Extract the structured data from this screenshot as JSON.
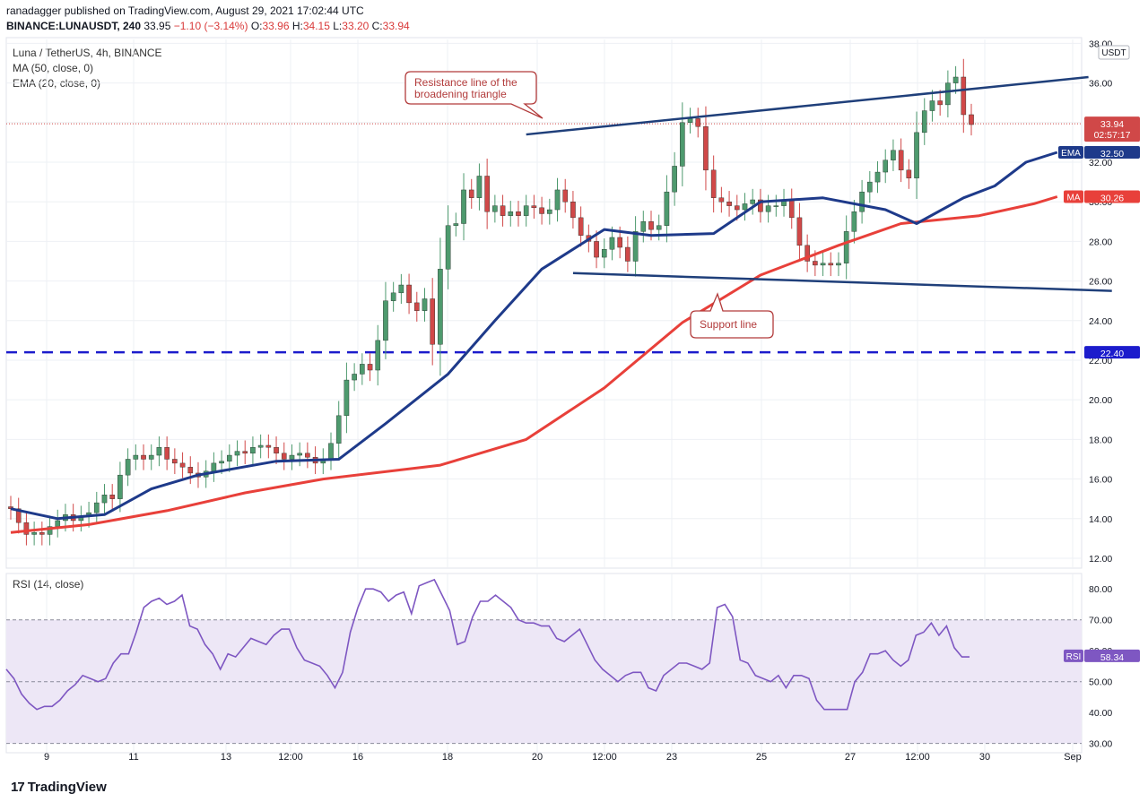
{
  "header": {
    "published": "ranadagger published on TradingView.com, August 29, 2021 17:02:44 UTC",
    "symbol_bold": "BINANCE:LUNAUSDT, 240",
    "price": "33.95",
    "change": "−1.10 (−3.14%)",
    "o_label": "O:",
    "o": "33.96",
    "h_label": "H:",
    "h": "34.15",
    "l_label": "L:",
    "l": "33.20",
    "c_label": "C:",
    "c": "33.94"
  },
  "legend": {
    "title": "Luna / TetherUS, 4h, BINANCE",
    "ma": "MA (50, close, 0)",
    "ema": "EMA (20, close, 0)",
    "rsi": "RSI (14, close)"
  },
  "annotations": {
    "resistance": [
      "Resistance line of the",
      "broadening triangle"
    ],
    "support": "Support line"
  },
  "badges": {
    "usdt": "USDT",
    "price": "33.94",
    "countdown": "02:57:17",
    "ema_tag": "EMA",
    "ema_val": "32.50",
    "ma_tag": "MA",
    "ma_val": "30.26",
    "level": "22.40",
    "rsi_tag": "RSI",
    "rsi_val": "58.34"
  },
  "brand": "TradingView",
  "colors": {
    "up": "#4e9a6e",
    "down": "#d04848",
    "ema": "#1e3a8a",
    "ma": "#e8403a",
    "trend": "#1f3f7a",
    "dash": "#1c1ccc",
    "rsi": "#7e57c2",
    "rsi_band": "#ede7f6",
    "annotation": "#b23b3b"
  },
  "chart_data": [
    {
      "type": "candlestick",
      "title": "Luna / TetherUS, 4h, BINANCE",
      "ylim": [
        11.5,
        38.2
      ],
      "y_ticks": [
        12,
        14,
        16,
        18,
        20,
        22,
        24,
        26,
        28,
        30,
        32,
        34,
        36,
        38
      ],
      "y_tick_labels": [
        "12.00",
        "14.00",
        "16.00",
        "18.00",
        "20.00",
        "22.00",
        "24.00",
        "26.00",
        "28.00",
        "30.00",
        "32.00",
        "34.00",
        "36.00",
        "38.00"
      ],
      "x_ticks": [
        "9",
        "11",
        "13",
        "12:00",
        "16",
        "18",
        "20",
        "12:00",
        "23",
        "25",
        "27",
        "12:00",
        "30",
        "Sep"
      ],
      "grid": true,
      "horizontal_level": 22.4,
      "last_price": 33.94,
      "closes": [
        14.5,
        13.8,
        13.2,
        13.3,
        13.2,
        13.6,
        13.9,
        14.2,
        13.9,
        14.1,
        14.3,
        14.8,
        15.2,
        15.0,
        16.2,
        17.0,
        17.2,
        17.0,
        17.2,
        17.6,
        17.0,
        16.8,
        16.6,
        16.3,
        16.1,
        16.4,
        16.8,
        16.9,
        17.2,
        17.4,
        17.3,
        17.6,
        17.7,
        17.6,
        17.3,
        17.0,
        17.2,
        17.3,
        17.1,
        16.8,
        17.0,
        17.8,
        19.2,
        21.0,
        21.3,
        21.8,
        21.5,
        23.0,
        25.0,
        25.4,
        25.8,
        24.9,
        24.5,
        25.1,
        22.8,
        26.6,
        28.8,
        28.9,
        30.6,
        30.2,
        31.3,
        29.5,
        29.8,
        29.3,
        29.5,
        29.3,
        29.8,
        29.7,
        29.4,
        29.6,
        30.6,
        30.0,
        29.2,
        28.3,
        28.0,
        27.2,
        27.6,
        28.2,
        27.7,
        27.0,
        28.5,
        29.0,
        28.6,
        28.8,
        30.5,
        31.8,
        34.0,
        34.2,
        33.8,
        31.6,
        30.2,
        30.0,
        29.8,
        29.6,
        29.9,
        30.1,
        29.5,
        29.8,
        29.8,
        30.1,
        29.2,
        27.8,
        27.0,
        26.8,
        26.9,
        26.8,
        26.9,
        28.5,
        29.5,
        30.5,
        31.0,
        31.5,
        32.1,
        32.6,
        31.6,
        31.2,
        33.5,
        34.6,
        35.1,
        34.9,
        36.0,
        36.3,
        34.4,
        33.9
      ],
      "opens": [
        14.6,
        14.5,
        13.8,
        13.2,
        13.3,
        13.2,
        13.6,
        13.9,
        14.2,
        13.9,
        14.1,
        14.3,
        14.8,
        15.2,
        15.0,
        16.2,
        17.0,
        17.2,
        17.0,
        17.2,
        17.6,
        17.0,
        16.8,
        16.6,
        16.3,
        16.1,
        16.4,
        16.8,
        16.9,
        17.2,
        17.4,
        17.3,
        17.6,
        17.7,
        17.6,
        17.3,
        17.0,
        17.2,
        17.3,
        17.1,
        16.8,
        17.0,
        17.8,
        19.2,
        21.0,
        21.3,
        21.8,
        21.5,
        23.0,
        25.0,
        25.4,
        25.8,
        24.9,
        24.5,
        25.1,
        22.8,
        26.6,
        28.8,
        28.9,
        30.6,
        30.2,
        31.3,
        29.5,
        29.8,
        29.3,
        29.5,
        29.3,
        29.8,
        29.7,
        29.4,
        29.6,
        30.6,
        30.0,
        29.2,
        28.3,
        28.0,
        27.2,
        27.6,
        28.2,
        27.7,
        27.0,
        28.5,
        29.0,
        28.6,
        28.8,
        30.5,
        31.8,
        34.0,
        34.2,
        33.8,
        31.6,
        30.2,
        30.0,
        29.8,
        29.6,
        29.9,
        30.1,
        29.5,
        29.8,
        29.8,
        30.1,
        29.2,
        27.8,
        27.0,
        26.8,
        26.9,
        26.8,
        26.9,
        28.5,
        29.5,
        30.5,
        31.0,
        31.5,
        32.1,
        32.6,
        31.6,
        31.2,
        33.5,
        34.6,
        35.1,
        34.9,
        36.0,
        36.3,
        34.4
      ],
      "ma50_path": [
        [
          0,
          13.3
        ],
        [
          10,
          13.7
        ],
        [
          20,
          14.4
        ],
        [
          30,
          15.3
        ],
        [
          40,
          16.0
        ],
        [
          55,
          16.7
        ],
        [
          66,
          18.0
        ],
        [
          76,
          20.6
        ],
        [
          86,
          23.9
        ],
        [
          96,
          26.3
        ],
        [
          106,
          27.8
        ],
        [
          114,
          28.9
        ],
        [
          124,
          29.3
        ],
        [
          131,
          29.9
        ],
        [
          134,
          30.26
        ]
      ],
      "ema20_path": [
        [
          0,
          14.5
        ],
        [
          6,
          14.0
        ],
        [
          12,
          14.2
        ],
        [
          18,
          15.5
        ],
        [
          24,
          16.2
        ],
        [
          34,
          16.9
        ],
        [
          42,
          17.0
        ],
        [
          48,
          18.8
        ],
        [
          56,
          21.3
        ],
        [
          62,
          24.0
        ],
        [
          68,
          26.6
        ],
        [
          76,
          28.6
        ],
        [
          82,
          28.3
        ],
        [
          90,
          28.4
        ],
        [
          96,
          30.0
        ],
        [
          104,
          30.2
        ],
        [
          112,
          29.6
        ],
        [
          116,
          28.9
        ],
        [
          122,
          30.2
        ],
        [
          126,
          30.8
        ],
        [
          130,
          32.0
        ],
        [
          134,
          32.5
        ]
      ],
      "resistance_line": [
        [
          66,
          33.4
        ],
        [
          138,
          36.3
        ]
      ],
      "support_line": [
        [
          72,
          26.4
        ],
        [
          141,
          25.5
        ]
      ]
    },
    {
      "type": "line",
      "title": "RSI (14, close)",
      "ylim": [
        27,
        85
      ],
      "y_ticks": [
        30,
        40,
        50,
        60,
        70,
        80
      ],
      "y_tick_labels": [
        "30.00",
        "40.00",
        "50.00",
        "60.00",
        "70.00",
        "80.00"
      ],
      "bands": [
        30,
        50,
        70
      ],
      "last_value": 58.34,
      "values": [
        54,
        51,
        46,
        43,
        41,
        42,
        42,
        44,
        47,
        49,
        52,
        51,
        50,
        51,
        56,
        59,
        59,
        66,
        74,
        76,
        77,
        75,
        76,
        78,
        68,
        67,
        62,
        59,
        54,
        59,
        58,
        61,
        64,
        63,
        62,
        65,
        67,
        67,
        61,
        57,
        56,
        55,
        52,
        48,
        53,
        66,
        74,
        80,
        80,
        79,
        76,
        78,
        79,
        72,
        81,
        82,
        83,
        78,
        73,
        62,
        63,
        71,
        76,
        76,
        78,
        76,
        74,
        70,
        69,
        69,
        68,
        68,
        64,
        63,
        65,
        67,
        62,
        57,
        54,
        52,
        50,
        52,
        53,
        53,
        48,
        47,
        52,
        54,
        56,
        56,
        55,
        54,
        56,
        74,
        75,
        71,
        57,
        56,
        52,
        51,
        50,
        52,
        48,
        52,
        52,
        51,
        44,
        41,
        41,
        41,
        41,
        50,
        53,
        59,
        59,
        60,
        57,
        55,
        57,
        65,
        66,
        69,
        65,
        68,
        61,
        58,
        58
      ]
    }
  ]
}
